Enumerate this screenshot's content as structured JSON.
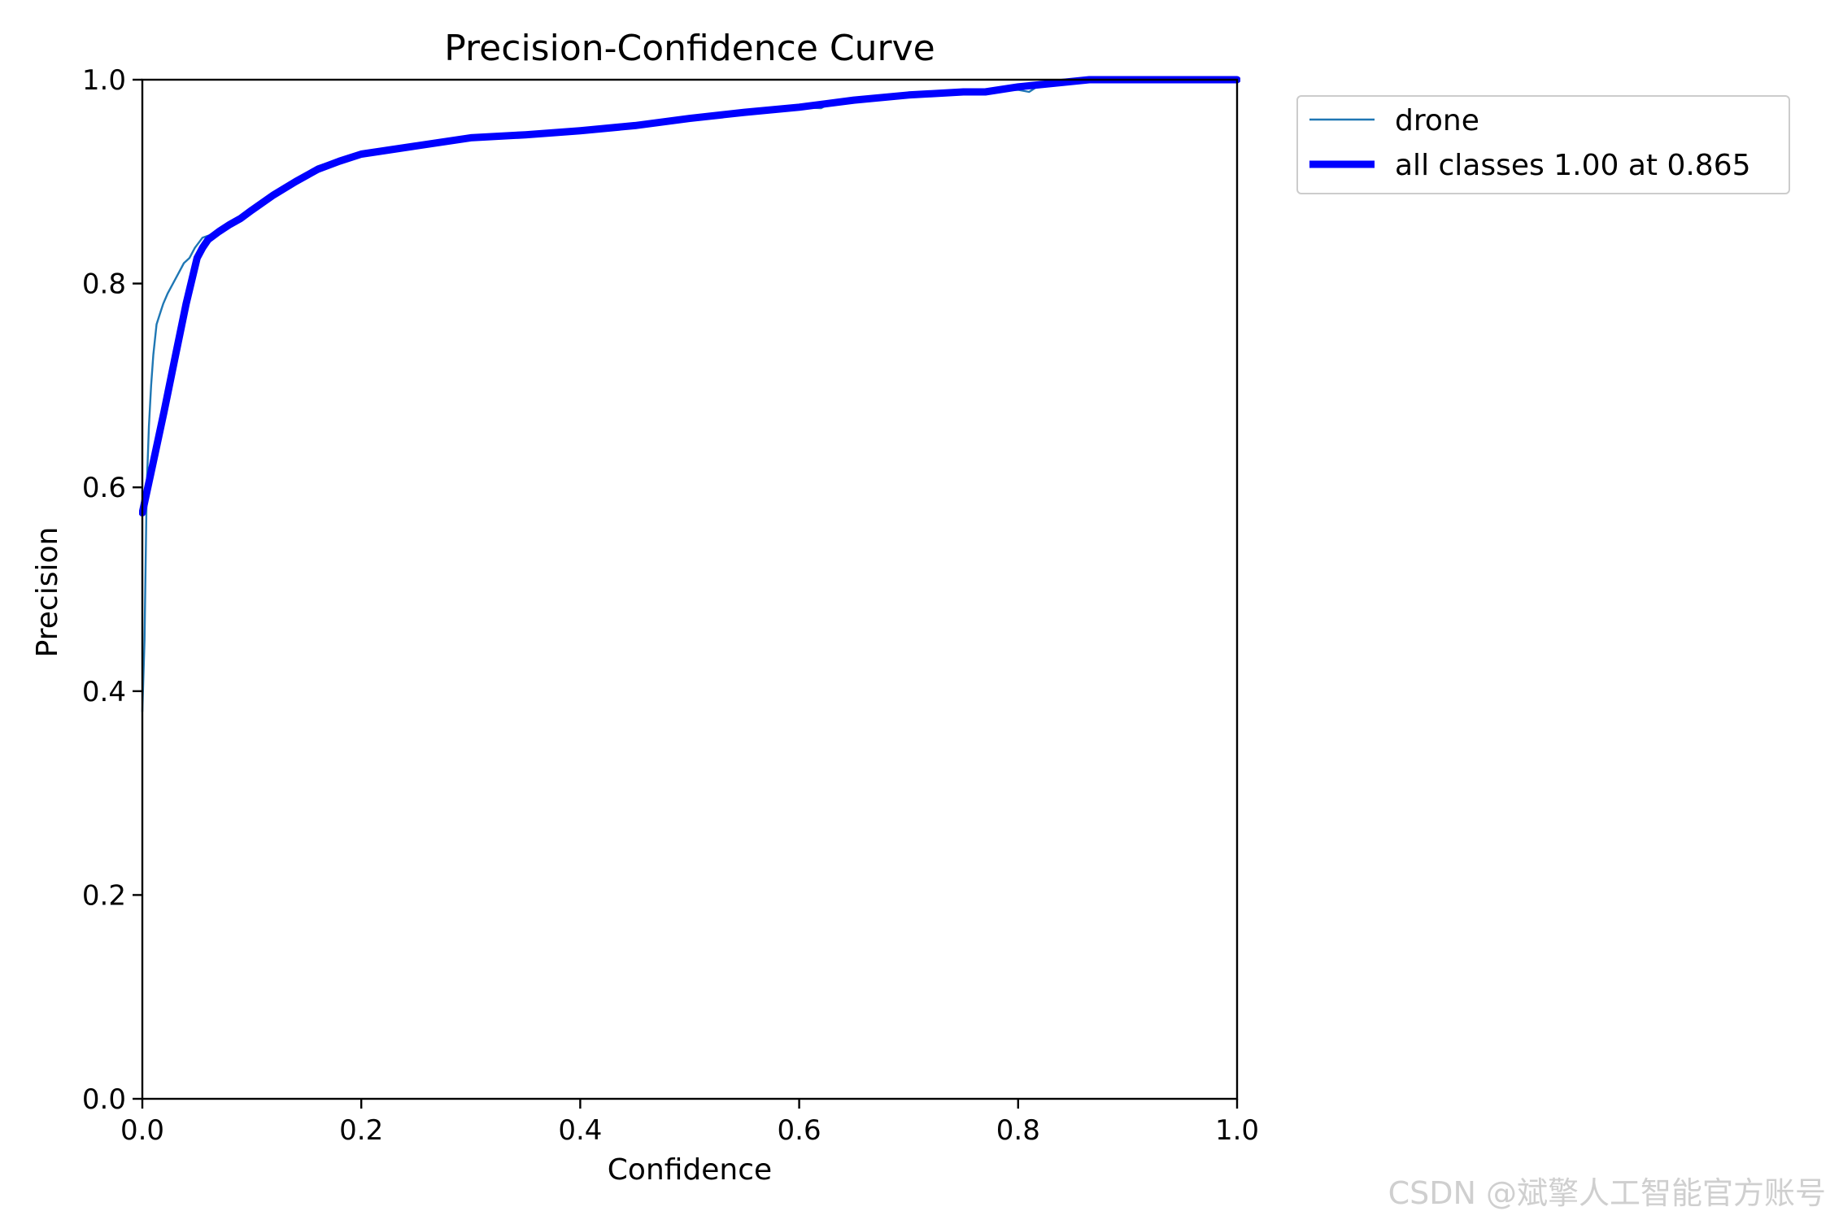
{
  "chart_data": {
    "type": "line",
    "title": "Precision-Confidence Curve",
    "xlabel": "Confidence",
    "ylabel": "Precision",
    "xlim": [
      0,
      1
    ],
    "ylim": [
      0,
      1
    ],
    "xticks": [
      "0.0",
      "0.2",
      "0.4",
      "0.6",
      "0.8",
      "1.0"
    ],
    "yticks": [
      "0.0",
      "0.2",
      "0.4",
      "0.6",
      "0.8",
      "1.0"
    ],
    "grid": false,
    "legend_position": "outside-top-right",
    "series": [
      {
        "name": "drone",
        "color": "#1f77b4",
        "style": "thin",
        "points": [
          [
            0.0,
            0.38
          ],
          [
            0.002,
            0.45
          ],
          [
            0.004,
            0.6
          ],
          [
            0.006,
            0.66
          ],
          [
            0.008,
            0.7
          ],
          [
            0.01,
            0.73
          ],
          [
            0.013,
            0.76
          ],
          [
            0.016,
            0.77
          ],
          [
            0.019,
            0.78
          ],
          [
            0.023,
            0.79
          ],
          [
            0.028,
            0.8
          ],
          [
            0.033,
            0.81
          ],
          [
            0.038,
            0.82
          ],
          [
            0.043,
            0.825
          ],
          [
            0.048,
            0.835
          ],
          [
            0.055,
            0.845
          ],
          [
            0.063,
            0.848
          ],
          [
            0.07,
            0.85
          ],
          [
            0.08,
            0.858
          ],
          [
            0.09,
            0.866
          ],
          [
            0.1,
            0.872
          ],
          [
            0.12,
            0.886
          ],
          [
            0.14,
            0.9
          ],
          [
            0.16,
            0.915
          ],
          [
            0.18,
            0.922
          ],
          [
            0.2,
            0.927
          ],
          [
            0.25,
            0.935
          ],
          [
            0.3,
            0.943
          ],
          [
            0.35,
            0.946
          ],
          [
            0.4,
            0.95
          ],
          [
            0.45,
            0.955
          ],
          [
            0.5,
            0.962
          ],
          [
            0.55,
            0.968
          ],
          [
            0.6,
            0.973
          ],
          [
            0.62,
            0.972
          ],
          [
            0.63,
            0.978
          ],
          [
            0.65,
            0.98
          ],
          [
            0.7,
            0.985
          ],
          [
            0.75,
            0.988
          ],
          [
            0.78,
            0.99
          ],
          [
            0.8,
            0.99
          ],
          [
            0.81,
            0.988
          ],
          [
            0.82,
            0.995
          ],
          [
            0.865,
            1.0
          ],
          [
            0.9,
            1.0
          ],
          [
            0.95,
            1.0
          ],
          [
            1.0,
            1.0
          ]
        ]
      },
      {
        "name": "all classes 1.00 at 0.865",
        "color": "#0000ff",
        "style": "thick",
        "points": [
          [
            0.0,
            0.575
          ],
          [
            0.01,
            0.625
          ],
          [
            0.02,
            0.675
          ],
          [
            0.03,
            0.728
          ],
          [
            0.04,
            0.78
          ],
          [
            0.05,
            0.825
          ],
          [
            0.055,
            0.835
          ],
          [
            0.06,
            0.843
          ],
          [
            0.07,
            0.851
          ],
          [
            0.08,
            0.858
          ],
          [
            0.09,
            0.864
          ],
          [
            0.1,
            0.872
          ],
          [
            0.12,
            0.887
          ],
          [
            0.14,
            0.9
          ],
          [
            0.16,
            0.912
          ],
          [
            0.18,
            0.92
          ],
          [
            0.2,
            0.927
          ],
          [
            0.25,
            0.935
          ],
          [
            0.3,
            0.943
          ],
          [
            0.35,
            0.946
          ],
          [
            0.4,
            0.95
          ],
          [
            0.45,
            0.955
          ],
          [
            0.5,
            0.962
          ],
          [
            0.55,
            0.968
          ],
          [
            0.6,
            0.973
          ],
          [
            0.65,
            0.98
          ],
          [
            0.7,
            0.985
          ],
          [
            0.75,
            0.988
          ],
          [
            0.77,
            0.988
          ],
          [
            0.8,
            0.993
          ],
          [
            0.865,
            1.0
          ],
          [
            0.9,
            1.0
          ],
          [
            0.95,
            1.0
          ],
          [
            1.0,
            1.0
          ]
        ]
      }
    ]
  },
  "watermark": "CSDN @斌擎人工智能官方账号"
}
